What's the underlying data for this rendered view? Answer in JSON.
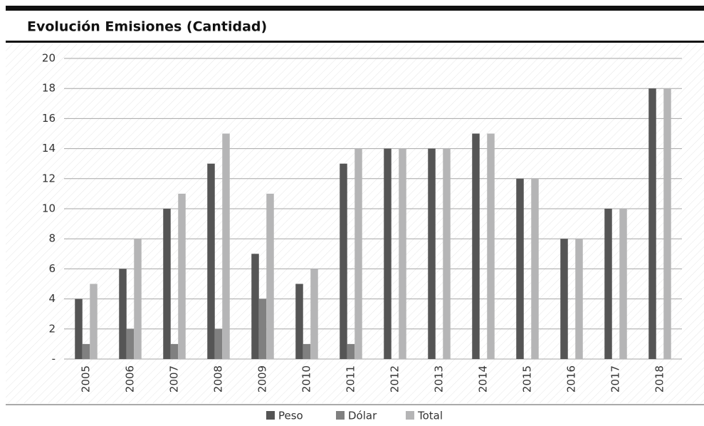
{
  "chart_data": {
    "type": "bar",
    "title": "Evolución Emisiones (Cantidad)",
    "categories": [
      "2005",
      "2006",
      "2007",
      "2008",
      "2009",
      "2010",
      "2011",
      "2012",
      "2013",
      "2014",
      "2015",
      "2016",
      "2017",
      "2018"
    ],
    "series": [
      {
        "name": "Peso",
        "color": "#555555",
        "values": [
          4,
          6,
          10,
          13,
          7,
          5,
          13,
          14,
          14,
          15,
          12,
          8,
          10,
          18
        ]
      },
      {
        "name": "Dólar",
        "color": "#808080",
        "values": [
          1,
          2,
          1,
          2,
          4,
          1,
          1,
          0,
          0,
          0,
          0,
          0,
          0,
          0
        ]
      },
      {
        "name": "Total",
        "color": "#b5b5b6",
        "values": [
          5,
          8,
          11,
          15,
          11,
          6,
          14,
          14,
          14,
          15,
          12,
          8,
          10,
          18
        ]
      }
    ],
    "ylim": [
      0,
      20
    ],
    "yticks": [
      {
        "value": 0,
        "label": "-"
      },
      2,
      4,
      6,
      8,
      10,
      12,
      14,
      16,
      18,
      20
    ],
    "grid": true,
    "legend": "bottom"
  }
}
